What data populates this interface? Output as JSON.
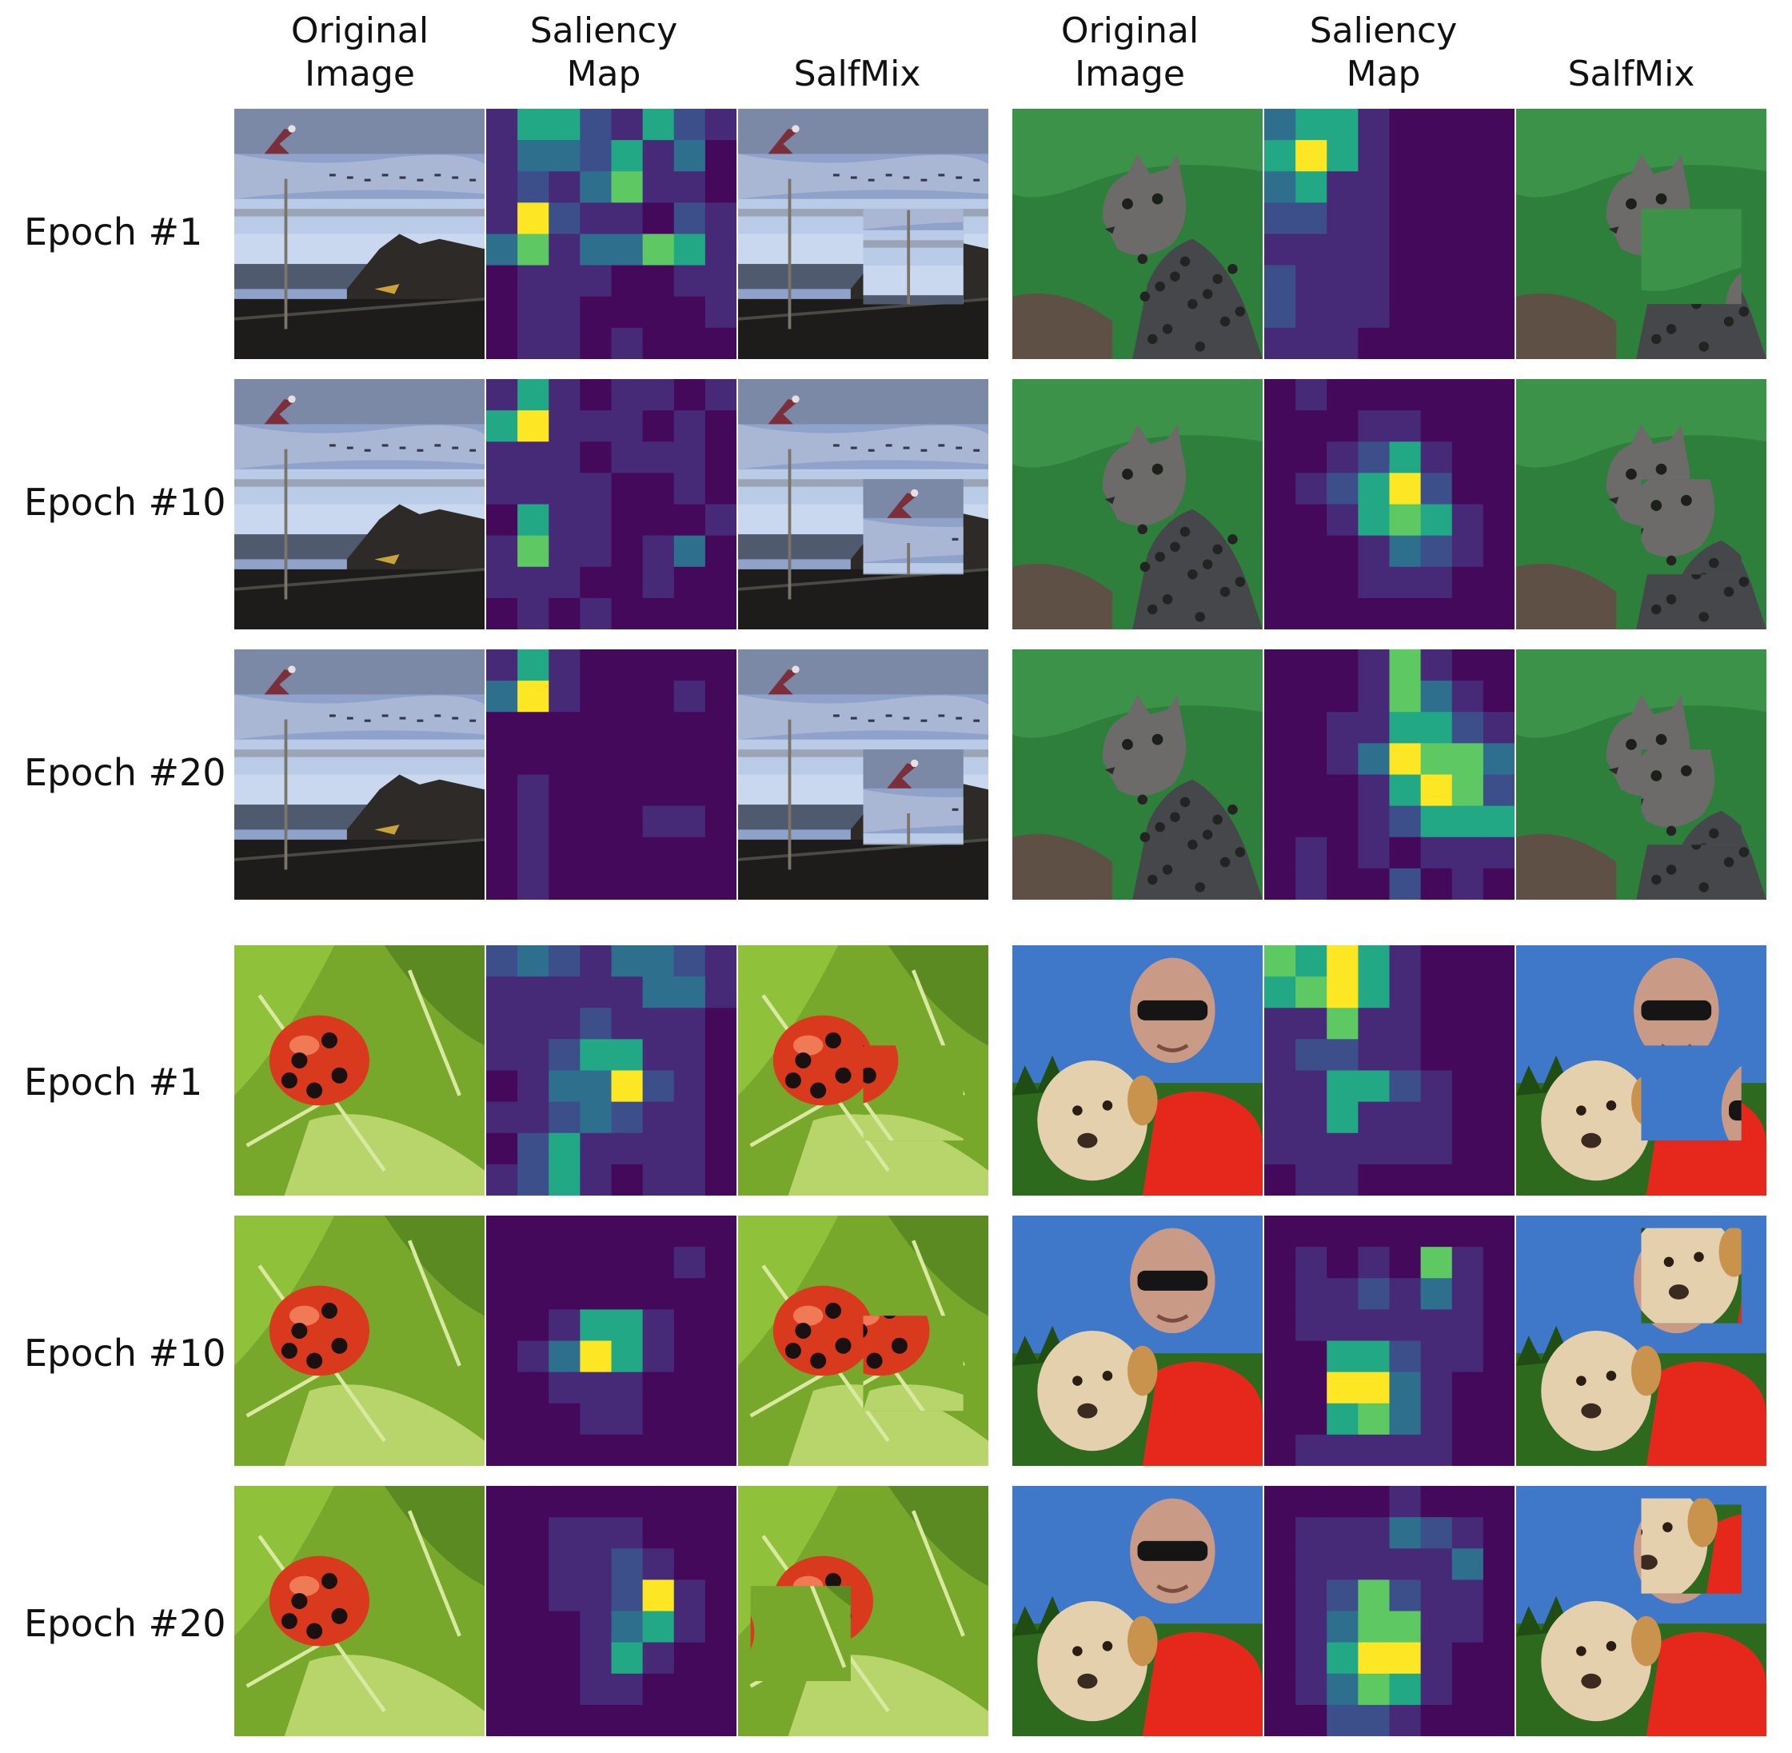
{
  "column_headers": [
    "Original\nImage",
    "Saliency\nMap",
    "SalfMix",
    "Original\nImage",
    "Saliency\nMap",
    "SalfMix"
  ],
  "row_labels": [
    "Epoch #1",
    "Epoch #10",
    "Epoch #20",
    "Epoch #1",
    "Epoch #10",
    "Epoch #20"
  ],
  "colors": {
    "viridis_0": "#45095c",
    "viridis_1": "#462a78",
    "viridis_2": "#3c4f8a",
    "viridis_3": "#2f6f8e",
    "viridis_4": "#22a884",
    "viridis_5": "#5ec962",
    "viridis_6": "#fde725"
  },
  "saliency_maps": {
    "beach": [
      [
        [
          1,
          4,
          4,
          2,
          1,
          4,
          2,
          1
        ],
        [
          1,
          3,
          3,
          2,
          4,
          1,
          3,
          0
        ],
        [
          1,
          2,
          1,
          3,
          5,
          1,
          1,
          0
        ],
        [
          1,
          6,
          2,
          1,
          1,
          0,
          2,
          1
        ],
        [
          3,
          5,
          1,
          3,
          3,
          5,
          4,
          1
        ],
        [
          0,
          1,
          1,
          1,
          0,
          0,
          1,
          1
        ],
        [
          0,
          1,
          1,
          0,
          0,
          0,
          0,
          1
        ],
        [
          0,
          1,
          1,
          0,
          1,
          0,
          0,
          0
        ]
      ],
      [
        [
          1,
          4,
          1,
          0,
          1,
          1,
          0,
          1
        ],
        [
          4,
          6,
          1,
          1,
          1,
          0,
          1,
          0
        ],
        [
          1,
          1,
          1,
          0,
          1,
          1,
          1,
          0
        ],
        [
          1,
          1,
          1,
          1,
          0,
          0,
          1,
          0
        ],
        [
          0,
          4,
          1,
          1,
          0,
          0,
          0,
          1
        ],
        [
          1,
          5,
          1,
          1,
          0,
          1,
          3,
          0
        ],
        [
          1,
          1,
          1,
          0,
          0,
          1,
          0,
          0
        ],
        [
          0,
          1,
          0,
          1,
          0,
          0,
          0,
          0
        ]
      ],
      [
        [
          1,
          4,
          1,
          0,
          0,
          0,
          0,
          0
        ],
        [
          3,
          6,
          1,
          0,
          0,
          0,
          1,
          0
        ],
        [
          0,
          0,
          0,
          0,
          0,
          0,
          0,
          0
        ],
        [
          0,
          0,
          0,
          0,
          0,
          0,
          0,
          0
        ],
        [
          0,
          1,
          0,
          0,
          0,
          0,
          0,
          0
        ],
        [
          0,
          1,
          0,
          0,
          0,
          1,
          1,
          0
        ],
        [
          0,
          1,
          0,
          0,
          0,
          0,
          0,
          0
        ],
        [
          0,
          1,
          0,
          0,
          0,
          0,
          0,
          0
        ]
      ]
    ],
    "cat": [
      [
        [
          3,
          4,
          4,
          1,
          0,
          0,
          0,
          0
        ],
        [
          4,
          6,
          4,
          1,
          0,
          0,
          0,
          0
        ],
        [
          3,
          4,
          1,
          1,
          0,
          0,
          0,
          0
        ],
        [
          2,
          2,
          1,
          1,
          0,
          0,
          0,
          0
        ],
        [
          1,
          1,
          1,
          1,
          0,
          0,
          0,
          0
        ],
        [
          2,
          1,
          1,
          1,
          0,
          0,
          0,
          0
        ],
        [
          2,
          1,
          1,
          1,
          0,
          0,
          0,
          0
        ],
        [
          1,
          1,
          1,
          0,
          0,
          0,
          0,
          0
        ]
      ],
      [
        [
          0,
          1,
          0,
          0,
          0,
          0,
          0,
          0
        ],
        [
          0,
          0,
          0,
          1,
          1,
          0,
          0,
          0
        ],
        [
          0,
          0,
          1,
          2,
          4,
          1,
          0,
          0
        ],
        [
          0,
          1,
          2,
          4,
          6,
          2,
          0,
          0
        ],
        [
          0,
          0,
          1,
          4,
          5,
          4,
          1,
          0
        ],
        [
          0,
          0,
          0,
          1,
          3,
          2,
          1,
          0
        ],
        [
          0,
          0,
          0,
          1,
          1,
          1,
          0,
          0
        ],
        [
          0,
          0,
          0,
          0,
          0,
          0,
          0,
          0
        ]
      ],
      [
        [
          0,
          0,
          0,
          1,
          5,
          1,
          0,
          0
        ],
        [
          0,
          0,
          0,
          1,
          5,
          3,
          1,
          0
        ],
        [
          0,
          0,
          1,
          1,
          4,
          4,
          2,
          1
        ],
        [
          0,
          0,
          1,
          3,
          6,
          5,
          5,
          3
        ],
        [
          0,
          0,
          0,
          1,
          4,
          6,
          5,
          2
        ],
        [
          0,
          0,
          0,
          1,
          2,
          4,
          4,
          4
        ],
        [
          0,
          1,
          0,
          1,
          0,
          1,
          1,
          1
        ],
        [
          0,
          1,
          0,
          0,
          2,
          0,
          1,
          0
        ]
      ]
    ],
    "ladybug": [
      [
        [
          2,
          3,
          2,
          1,
          3,
          3,
          2,
          1
        ],
        [
          1,
          1,
          1,
          1,
          1,
          3,
          3,
          1
        ],
        [
          1,
          1,
          1,
          2,
          1,
          1,
          1,
          0
        ],
        [
          1,
          1,
          2,
          4,
          4,
          1,
          1,
          0
        ],
        [
          0,
          1,
          3,
          3,
          6,
          2,
          1,
          0
        ],
        [
          1,
          1,
          2,
          3,
          2,
          1,
          1,
          0
        ],
        [
          0,
          2,
          4,
          1,
          1,
          1,
          1,
          0
        ],
        [
          1,
          2,
          4,
          1,
          0,
          1,
          1,
          0
        ]
      ],
      [
        [
          0,
          0,
          0,
          0,
          0,
          0,
          0,
          0
        ],
        [
          0,
          0,
          0,
          0,
          0,
          0,
          1,
          0
        ],
        [
          0,
          0,
          0,
          0,
          0,
          0,
          0,
          0
        ],
        [
          0,
          0,
          1,
          4,
          4,
          1,
          0,
          0
        ],
        [
          0,
          1,
          3,
          6,
          4,
          1,
          0,
          0
        ],
        [
          0,
          0,
          1,
          1,
          1,
          0,
          0,
          0
        ],
        [
          0,
          0,
          0,
          1,
          1,
          0,
          0,
          0
        ],
        [
          0,
          0,
          0,
          0,
          0,
          0,
          0,
          0
        ]
      ],
      [
        [
          0,
          0,
          0,
          0,
          0,
          0,
          0,
          0
        ],
        [
          0,
          0,
          1,
          1,
          1,
          0,
          0,
          0
        ],
        [
          0,
          0,
          1,
          1,
          2,
          1,
          0,
          0
        ],
        [
          0,
          0,
          1,
          1,
          2,
          6,
          1,
          0
        ],
        [
          0,
          0,
          0,
          1,
          3,
          4,
          1,
          0
        ],
        [
          0,
          0,
          0,
          1,
          4,
          1,
          0,
          0
        ],
        [
          0,
          0,
          0,
          1,
          1,
          0,
          0,
          0
        ],
        [
          0,
          0,
          0,
          0,
          0,
          0,
          0,
          0
        ]
      ]
    ],
    "man": [
      [
        [
          5,
          4,
          6,
          4,
          1,
          0,
          0,
          0
        ],
        [
          4,
          5,
          6,
          4,
          1,
          0,
          0,
          0
        ],
        [
          1,
          1,
          5,
          1,
          1,
          0,
          0,
          0
        ],
        [
          1,
          2,
          2,
          1,
          1,
          0,
          0,
          0
        ],
        [
          1,
          1,
          4,
          4,
          2,
          1,
          0,
          0
        ],
        [
          1,
          1,
          4,
          1,
          1,
          1,
          0,
          0
        ],
        [
          1,
          1,
          1,
          1,
          1,
          1,
          0,
          0
        ],
        [
          0,
          1,
          1,
          0,
          0,
          0,
          0,
          0
        ]
      ],
      [
        [
          0,
          0,
          0,
          0,
          0,
          0,
          0,
          0
        ],
        [
          0,
          1,
          0,
          1,
          0,
          5,
          1,
          0
        ],
        [
          0,
          1,
          1,
          2,
          1,
          3,
          1,
          0
        ],
        [
          0,
          1,
          1,
          1,
          1,
          1,
          1,
          0
        ],
        [
          0,
          0,
          4,
          4,
          2,
          1,
          1,
          0
        ],
        [
          0,
          0,
          6,
          6,
          3,
          1,
          0,
          0
        ],
        [
          0,
          0,
          4,
          5,
          3,
          1,
          0,
          0
        ],
        [
          0,
          1,
          1,
          1,
          1,
          1,
          0,
          0
        ]
      ],
      [
        [
          0,
          0,
          0,
          0,
          1,
          0,
          0,
          0
        ],
        [
          0,
          1,
          1,
          1,
          3,
          2,
          1,
          0
        ],
        [
          0,
          1,
          1,
          1,
          1,
          1,
          3,
          0
        ],
        [
          0,
          1,
          2,
          5,
          2,
          1,
          1,
          0
        ],
        [
          0,
          1,
          3,
          5,
          5,
          1,
          1,
          0
        ],
        [
          0,
          1,
          4,
          6,
          6,
          1,
          0,
          0
        ],
        [
          0,
          1,
          3,
          5,
          4,
          1,
          0,
          0
        ],
        [
          0,
          0,
          2,
          2,
          1,
          0,
          0,
          0
        ]
      ]
    ]
  }
}
